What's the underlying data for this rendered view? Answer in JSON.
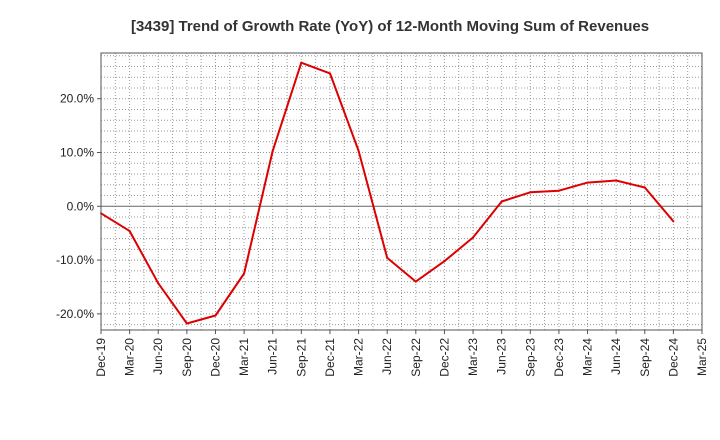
{
  "chart_data": {
    "type": "line",
    "title": "[3439]  Trend of Growth Rate (YoY) of 12-Month Moving Sum of Revenues",
    "xlabel": "",
    "ylabel": "",
    "x_ticks": [
      "Dec-19",
      "Mar-20",
      "Jun-20",
      "Sep-20",
      "Dec-20",
      "Mar-21",
      "Jun-21",
      "Sep-21",
      "Dec-21",
      "Mar-22",
      "Jun-22",
      "Sep-22",
      "Dec-22",
      "Mar-23",
      "Jun-23",
      "Sep-23",
      "Dec-23",
      "Mar-24",
      "Jun-24",
      "Sep-24",
      "Dec-24",
      "Mar-25"
    ],
    "y_ticks": [
      -20,
      -10,
      0,
      10,
      20
    ],
    "y_tick_labels": [
      "-20.0%",
      "-10.0%",
      "0.0%",
      "10.0%",
      "20.0%"
    ],
    "ylim": [
      -23,
      28.5
    ],
    "grid": true,
    "line_color": "#dd0000",
    "series": [
      {
        "x": [
          "Dec-19",
          "Mar-20",
          "Jun-20",
          "Sep-20",
          "Dec-20",
          "Mar-21",
          "Jun-21",
          "Sep-21",
          "Dec-21",
          "Mar-22",
          "Jun-22",
          "Sep-22",
          "Dec-22",
          "Mar-23",
          "Jun-23",
          "Sep-23",
          "Dec-23",
          "Mar-24",
          "Jun-24",
          "Sep-24",
          "Dec-24"
        ],
        "values": [
          -1.3,
          -4.6,
          -14.3,
          -21.8,
          -20.3,
          -12.5,
          10.3,
          26.7,
          24.7,
          10.3,
          -9.6,
          -14.0,
          -10.2,
          -5.8,
          0.9,
          2.6,
          2.9,
          4.4,
          4.8,
          3.5,
          -2.8
        ]
      }
    ]
  }
}
